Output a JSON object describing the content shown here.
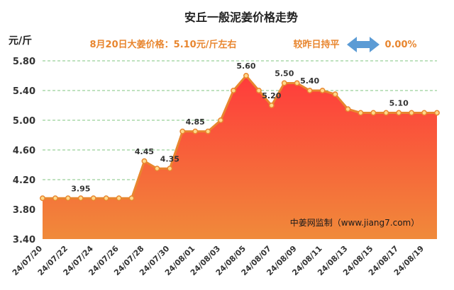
{
  "header": {
    "title": "安丘一般泥姜价格走势",
    "unit": "元/斤",
    "price_note": "8月20日大姜价格：5.10元/斤左右",
    "change_label": "较昨日持平",
    "change_value": "0.00%",
    "arrow_icon": "left-right-arrow-icon",
    "arrow_color": "#5b9bd5"
  },
  "watermark": "中姜网监制（www.jiang7.com）",
  "colors": {
    "line": "#e8862f",
    "marker_fill": "#ffd98a",
    "fill_top": "#ff3b3b",
    "fill_bottom": "#f08a3a",
    "grid": "#7fc47f"
  },
  "chart_data": {
    "type": "area",
    "title": "安丘一般泥姜价格走势",
    "ylabel": "元/斤",
    "ylim": [
      3.4,
      5.8
    ],
    "yticks": [
      "5.80",
      "5.40",
      "5.00",
      "4.60",
      "4.20",
      "3.80",
      "3.40"
    ],
    "grid": "horizontal-dashed",
    "x": [
      "24/07/20",
      "24/07/21",
      "24/07/22",
      "24/07/23",
      "24/07/24",
      "24/07/25",
      "24/07/26",
      "24/07/27",
      "24/07/28",
      "24/07/29",
      "24/07/30",
      "24/07/31",
      "24/08/01",
      "24/08/02",
      "24/08/03",
      "24/08/04",
      "24/08/05",
      "24/08/06",
      "24/08/07",
      "24/08/08",
      "24/08/09",
      "24/08/10",
      "24/08/11",
      "24/08/12",
      "24/08/13",
      "24/08/14",
      "24/08/15",
      "24/08/16",
      "24/08/17",
      "24/08/18",
      "24/08/19",
      "24/08/20"
    ],
    "xticks": [
      "24/07/20",
      "24/07/22",
      "24/07/24",
      "24/07/26",
      "24/07/28",
      "24/07/30",
      "24/08/01",
      "24/08/03",
      "24/08/05",
      "24/08/07",
      "24/08/09",
      "24/08/11",
      "24/08/13",
      "24/08/15",
      "24/08/17",
      "24/08/19"
    ],
    "values": [
      3.95,
      3.95,
      3.95,
      3.95,
      3.95,
      3.95,
      3.95,
      3.95,
      4.45,
      4.35,
      4.35,
      4.85,
      4.85,
      4.85,
      5.0,
      5.4,
      5.6,
      5.4,
      5.2,
      5.5,
      5.5,
      5.4,
      5.4,
      5.35,
      5.15,
      5.1,
      5.1,
      5.1,
      5.1,
      5.1,
      5.1,
      5.1
    ],
    "data_labels": [
      {
        "x": "24/07/23",
        "text": "3.95"
      },
      {
        "x": "24/07/28",
        "text": "4.45"
      },
      {
        "x": "24/07/30",
        "text": "4.35"
      },
      {
        "x": "24/08/01",
        "text": "4.85"
      },
      {
        "x": "24/08/05",
        "text": "5.60"
      },
      {
        "x": "24/08/07",
        "text": "5.20"
      },
      {
        "x": "24/08/08",
        "text": "5.50"
      },
      {
        "x": "24/08/10",
        "text": "5.40"
      },
      {
        "x": "24/08/17",
        "text": "5.10"
      }
    ]
  }
}
